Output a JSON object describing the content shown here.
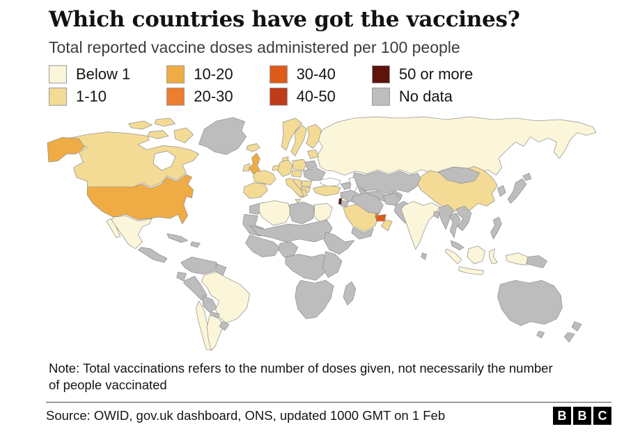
{
  "chart_data": {
    "type": "choropleth",
    "title": "Which countries have got the vaccines?",
    "subtitle": "Total reported vaccine doses administered per 100 people",
    "unit": "vaccine doses administered per 100 people",
    "legend_position": "top",
    "legend": [
      {
        "label": "Below 1",
        "color": "#FBF5D9"
      },
      {
        "label": "1-10",
        "color": "#F3DB96"
      },
      {
        "label": "10-20",
        "color": "#F0AC44"
      },
      {
        "label": "20-30",
        "color": "#ED7D2F"
      },
      {
        "label": "30-40",
        "color": "#DE5B19"
      },
      {
        "label": "40-50",
        "color": "#BF3C1A"
      },
      {
        "label": "50 or more",
        "color": "#5E140C"
      },
      {
        "label": "No data",
        "color": "#BDBDBD"
      }
    ],
    "regions": [
      {
        "id": "greenland",
        "label": "Greenland",
        "category": "No data"
      },
      {
        "id": "iceland",
        "label": "Iceland",
        "category": "1-10"
      },
      {
        "id": "canada",
        "label": "Canada",
        "category": "1-10"
      },
      {
        "id": "arctic-islands",
        "label": "Canadian Arctic islands",
        "category": "1-10"
      },
      {
        "id": "alaska",
        "label": "Alaska (US)",
        "category": "10-20"
      },
      {
        "id": "usa",
        "label": "United States",
        "category": "10-20"
      },
      {
        "id": "mexico",
        "label": "Mexico",
        "category": "Below 1"
      },
      {
        "id": "central-america",
        "label": "Central America",
        "category": "No data"
      },
      {
        "id": "cuba",
        "label": "Cuba",
        "category": "No data"
      },
      {
        "id": "hispaniola",
        "label": "Hispaniola",
        "category": "No data"
      },
      {
        "id": "colombia-venezuela",
        "label": "Colombia & Venezuela",
        "category": "No data"
      },
      {
        "id": "guyanas",
        "label": "Guyanas",
        "category": "No data"
      },
      {
        "id": "ecuador",
        "label": "Ecuador",
        "category": "No data"
      },
      {
        "id": "peru",
        "label": "Peru",
        "category": "No data"
      },
      {
        "id": "brazil",
        "label": "Brazil",
        "category": "Below 1"
      },
      {
        "id": "bolivia",
        "label": "Bolivia",
        "category": "No data"
      },
      {
        "id": "paraguay",
        "label": "Paraguay",
        "category": "No data"
      },
      {
        "id": "chile",
        "label": "Chile",
        "category": "Below 1"
      },
      {
        "id": "argentina",
        "label": "Argentina",
        "category": "Below 1"
      },
      {
        "id": "uruguay",
        "label": "Uruguay",
        "category": "No data"
      },
      {
        "id": "great-britain",
        "label": "United Kingdom",
        "category": "10-20"
      },
      {
        "id": "ireland",
        "label": "Ireland",
        "category": "1-10"
      },
      {
        "id": "norway",
        "label": "Norway",
        "category": "1-10"
      },
      {
        "id": "sweden",
        "label": "Sweden",
        "category": "1-10"
      },
      {
        "id": "finland",
        "label": "Finland",
        "category": "1-10"
      },
      {
        "id": "baltics",
        "label": "Baltic states",
        "category": "1-10"
      },
      {
        "id": "denmark",
        "label": "Denmark",
        "category": "1-10"
      },
      {
        "id": "iberia",
        "label": "Spain & Portugal",
        "category": "1-10"
      },
      {
        "id": "france",
        "label": "France",
        "category": "1-10"
      },
      {
        "id": "benelux",
        "label": "Benelux",
        "category": "1-10"
      },
      {
        "id": "germany",
        "label": "Germany",
        "category": "1-10"
      },
      {
        "id": "italy",
        "label": "Italy",
        "category": "1-10"
      },
      {
        "id": "poland",
        "label": "Poland",
        "category": "1-10"
      },
      {
        "id": "central-europe",
        "label": "Central Europe",
        "category": "1-10"
      },
      {
        "id": "belarus",
        "label": "Belarus",
        "category": "No data"
      },
      {
        "id": "ukraine",
        "label": "Ukraine",
        "category": "No data"
      },
      {
        "id": "romania",
        "label": "Romania",
        "category": "1-10"
      },
      {
        "id": "balkans",
        "label": "Balkans",
        "category": "1-10"
      },
      {
        "id": "bulgaria",
        "label": "Bulgaria",
        "category": "1-10"
      },
      {
        "id": "greece",
        "label": "Greece",
        "category": "1-10"
      },
      {
        "id": "turkey",
        "label": "Turkey",
        "category": "1-10"
      },
      {
        "id": "russia",
        "label": "Russia",
        "category": "Below 1"
      },
      {
        "id": "kazakhstan",
        "label": "Kazakhstan",
        "category": "No data"
      },
      {
        "id": "central-asia",
        "label": "Central Asia",
        "category": "No data"
      },
      {
        "id": "caucasus",
        "label": "Caucasus",
        "category": "No data"
      },
      {
        "id": "syria-iraq",
        "label": "Syria & Iraq",
        "category": "No data"
      },
      {
        "id": "israel",
        "label": "Israel",
        "category": "50 or more"
      },
      {
        "id": "jordan",
        "label": "Jordan",
        "category": "No data"
      },
      {
        "id": "saudi-arabia",
        "label": "Saudi Arabia",
        "category": "1-10"
      },
      {
        "id": "uae",
        "label": "United Arab Emirates",
        "category": "30-40"
      },
      {
        "id": "qatar",
        "label": "Qatar",
        "category": "20-30"
      },
      {
        "id": "oman",
        "label": "Oman",
        "category": "1-10"
      },
      {
        "id": "yemen",
        "label": "Yemen",
        "category": "No data"
      },
      {
        "id": "iran",
        "label": "Iran",
        "category": "No data"
      },
      {
        "id": "afghanistan",
        "label": "Afghanistan",
        "category": "No data"
      },
      {
        "id": "pakistan",
        "label": "Pakistan",
        "category": "No data"
      },
      {
        "id": "india",
        "label": "India",
        "category": "Below 1"
      },
      {
        "id": "sri-lanka",
        "label": "Sri Lanka",
        "category": "No data"
      },
      {
        "id": "bangladesh",
        "label": "Bangladesh",
        "category": "No data"
      },
      {
        "id": "china",
        "label": "China",
        "category": "1-10"
      },
      {
        "id": "mongolia",
        "label": "Mongolia",
        "category": "No data"
      },
      {
        "id": "korea",
        "label": "Korea",
        "category": "No data"
      },
      {
        "id": "japan",
        "label": "Japan",
        "category": "No data"
      },
      {
        "id": "myanmar",
        "label": "Myanmar",
        "category": "No data"
      },
      {
        "id": "thailand",
        "label": "Thailand",
        "category": "No data"
      },
      {
        "id": "indochina",
        "label": "Vietnam, Laos & Cambodia",
        "category": "No data"
      },
      {
        "id": "malaysia",
        "label": "Malaysia",
        "category": "No data"
      },
      {
        "id": "philippines",
        "label": "Philippines",
        "category": "No data"
      },
      {
        "id": "indonesia",
        "label": "Indonesia",
        "category": "Below 1"
      },
      {
        "id": "papua-new-guinea",
        "label": "Papua New Guinea",
        "category": "No data"
      },
      {
        "id": "australia",
        "label": "Australia",
        "category": "No data"
      },
      {
        "id": "new-zealand",
        "label": "New Zealand",
        "category": "No data"
      },
      {
        "id": "morocco",
        "label": "Morocco",
        "category": "No data"
      },
      {
        "id": "algeria",
        "label": "Algeria",
        "category": "Below 1"
      },
      {
        "id": "libya",
        "label": "Libya",
        "category": "No data"
      },
      {
        "id": "egypt",
        "label": "Egypt",
        "category": "Below 1"
      },
      {
        "id": "west-sahara",
        "label": "Western Sahara & Mauritania",
        "category": "No data"
      },
      {
        "id": "sahel",
        "label": "Sahel",
        "category": "No data"
      },
      {
        "id": "west-africa",
        "label": "West Africa",
        "category": "No data"
      },
      {
        "id": "nigeria",
        "label": "Nigeria & Cameroon",
        "category": "No data"
      },
      {
        "id": "horn-of-africa",
        "label": "Horn of Africa",
        "category": "No data"
      },
      {
        "id": "central-africa",
        "label": "Central Africa",
        "category": "No data"
      },
      {
        "id": "east-africa",
        "label": "East Africa",
        "category": "No data"
      },
      {
        "id": "southern-africa",
        "label": "Southern Africa",
        "category": "No data"
      },
      {
        "id": "madagascar",
        "label": "Madagascar",
        "category": "No data"
      }
    ]
  },
  "note": "Note: Total vaccinations refers to the number of doses given, not necessarily the number of people vaccinated",
  "source": "Source: OWID, gov.uk dashboard, ONS, updated 1000 GMT on 1 Feb",
  "logo": {
    "name": "BBC",
    "letters": [
      "B",
      "B",
      "C"
    ]
  }
}
